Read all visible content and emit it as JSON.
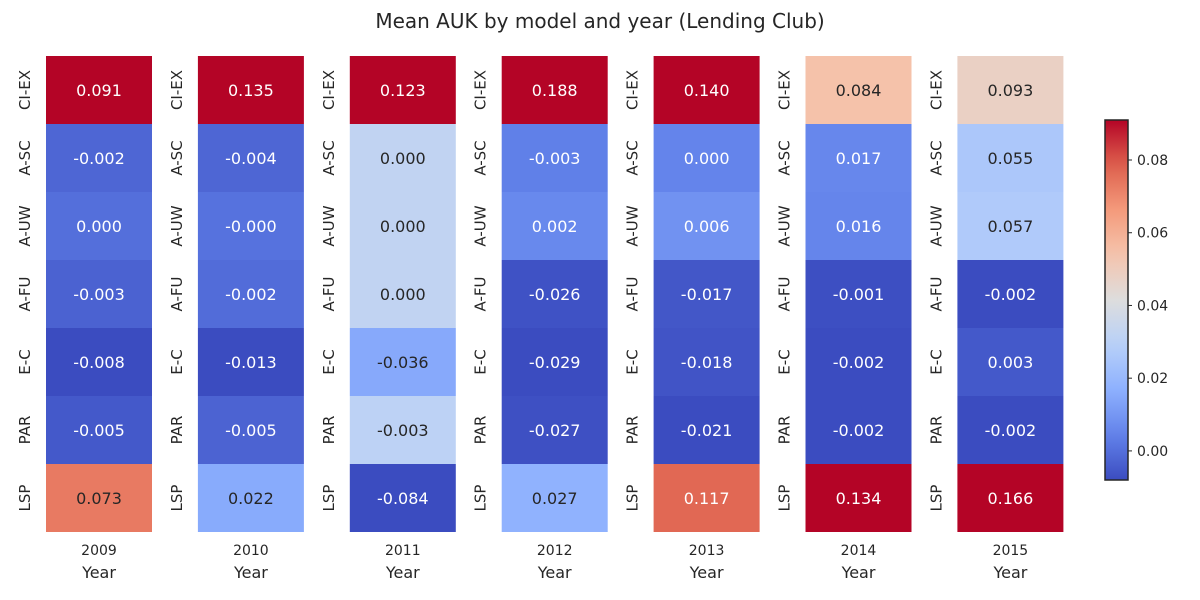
{
  "chart_data": {
    "type": "heatmap",
    "title": "Mean AUK by model and year (Lending Club)",
    "xlabel": "Year",
    "rows": [
      "CI-EX",
      "A-SC",
      "A-UW",
      "A-FU",
      "E-C",
      "PAR",
      "LSP"
    ],
    "years": [
      "2009",
      "2010",
      "2011",
      "2012",
      "2013",
      "2014",
      "2015"
    ],
    "columns": [
      {
        "year": "2009",
        "values": [
          0.091,
          -0.002,
          0.0,
          -0.003,
          -0.008,
          -0.005,
          0.073
        ],
        "labels": [
          "0.091",
          "-0.002",
          "0.000",
          "-0.003",
          "-0.008",
          "-0.005",
          "0.073"
        ]
      },
      {
        "year": "2010",
        "values": [
          0.135,
          -0.004,
          -0.0,
          -0.002,
          -0.013,
          -0.005,
          0.022
        ],
        "labels": [
          "0.135",
          "-0.004",
          "-0.000",
          "-0.002",
          "-0.013",
          "-0.005",
          "0.022"
        ]
      },
      {
        "year": "2011",
        "values": [
          0.123,
          0.0,
          0.0,
          0.0,
          -0.036,
          -0.003,
          -0.084
        ],
        "labels": [
          "0.123",
          "0.000",
          "0.000",
          "0.000",
          "-0.036",
          "-0.003",
          "-0.084"
        ]
      },
      {
        "year": "2012",
        "values": [
          0.188,
          -0.003,
          0.002,
          -0.026,
          -0.029,
          -0.027,
          0.027
        ],
        "labels": [
          "0.188",
          "-0.003",
          "0.002",
          "-0.026",
          "-0.029",
          "-0.027",
          "0.027"
        ]
      },
      {
        "year": "2013",
        "values": [
          0.14,
          0.0,
          0.006,
          -0.017,
          -0.018,
          -0.021,
          0.117
        ],
        "labels": [
          "0.140",
          "0.000",
          "0.006",
          "-0.017",
          "-0.018",
          "-0.021",
          "0.117"
        ]
      },
      {
        "year": "2014",
        "values": [
          0.084,
          0.017,
          0.016,
          -0.001,
          -0.002,
          -0.002,
          0.134
        ],
        "labels": [
          "0.084",
          "0.017",
          "0.016",
          "-0.001",
          "-0.002",
          "-0.002",
          "0.134"
        ]
      },
      {
        "year": "2015",
        "values": [
          0.093,
          0.055,
          0.057,
          -0.002,
          0.003,
          -0.002,
          0.166
        ],
        "labels": [
          "0.093",
          "0.055",
          "0.057",
          "-0.002",
          "0.003",
          "-0.002",
          "0.166"
        ]
      }
    ],
    "colorbar": {
      "min": -0.008,
      "max": 0.091,
      "ticks": [
        0.0,
        0.02,
        0.04,
        0.06,
        0.08
      ],
      "tick_labels": [
        "0.00",
        "0.02",
        "0.04",
        "0.06",
        "0.08"
      ],
      "colormap": "coolwarm"
    }
  }
}
